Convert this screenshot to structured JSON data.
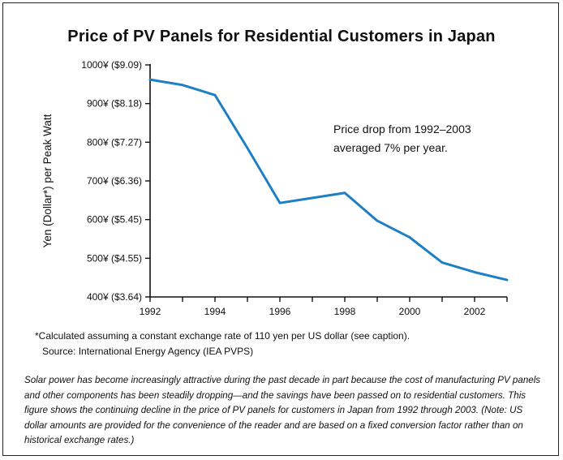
{
  "chart_data": {
    "type": "line",
    "title": "Price of PV Panels for Residential Customers in Japan",
    "ylabel": "Yen (Dollar*) per Peak Watt",
    "xlabel": "",
    "x": [
      1992,
      1993,
      1994,
      1995,
      1996,
      1997,
      1998,
      1999,
      2000,
      2001,
      2002,
      2003
    ],
    "series": [
      {
        "values": [
          962,
          948,
          922,
          785,
          643,
          656,
          669,
          597,
          554,
          489,
          464,
          444
        ]
      }
    ],
    "xlim": [
      1992,
      2003
    ],
    "ylim": [
      400,
      1000
    ],
    "x_ticks": [
      1992,
      1994,
      1996,
      1998,
      2000,
      2002
    ],
    "x_tick_labels": [
      "1992",
      "1994",
      "1996",
      "1998",
      "2000",
      "2002"
    ],
    "y_ticks": [
      400,
      500,
      600,
      700,
      800,
      900,
      1000
    ],
    "y_tick_labels": [
      "400¥ ($3.64)",
      "500¥ ($4.55)",
      "600¥ ($5.45)",
      "700¥ ($6.36)",
      "800¥ ($7.27)",
      "900¥ ($8.18)",
      "1000¥ ($9.09)"
    ],
    "annotation": [
      "Price drop from 1992–2003",
      "averaged 7% per year."
    ],
    "grid": false,
    "line_color": "#1f7fc4",
    "axis_color": "#111111"
  },
  "footnote": {
    "note": "*Calculated assuming a constant exchange rate of 110 yen per US dollar (see caption).",
    "source": "Source: International Energy Agency (IEA PVPS)"
  },
  "caption": "Solar power has become increasingly attractive during the past decade in part because the cost of manufacturing PV panels and other components has been steadily dropping—and the savings have been passed on to residential customers. This figure shows the continuing decline in the price of PV panels for customers in Japan from 1992 through 2003. (Note: US dollar amounts are provided for the convenience of the reader and are based on a fixed conversion factor rather than on historical exchange rates.)"
}
